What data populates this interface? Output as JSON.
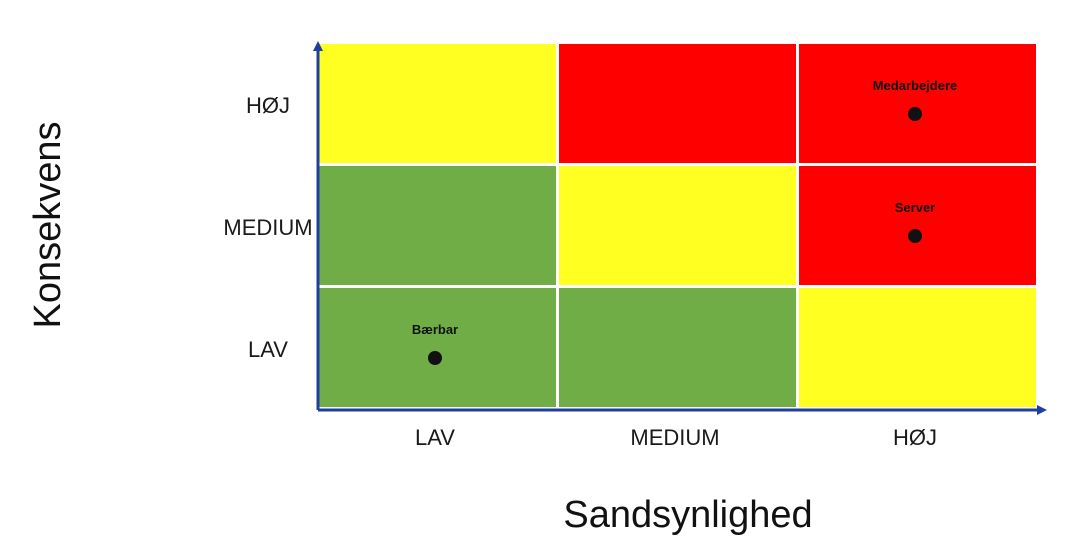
{
  "diagram": {
    "type": "risk-matrix",
    "x_axis": {
      "title": "Sandsynlighed",
      "levels": [
        "LAV",
        "MEDIUM",
        "HØJ"
      ]
    },
    "y_axis": {
      "title": "Konsekvens",
      "levels": [
        "LAV",
        "MEDIUM",
        "HØJ"
      ]
    },
    "colors": {
      "green": "#70ad47",
      "yellow": "#ffff22",
      "red": "#ff0000",
      "axis": "#1f3f9e",
      "cell_border": "#ffffff"
    },
    "cells": [
      {
        "likelihood": "LAV",
        "consequence": "HØJ",
        "color": "yellow"
      },
      {
        "likelihood": "MEDIUM",
        "consequence": "HØJ",
        "color": "red"
      },
      {
        "likelihood": "HØJ",
        "consequence": "HØJ",
        "color": "red"
      },
      {
        "likelihood": "LAV",
        "consequence": "MEDIUM",
        "color": "green"
      },
      {
        "likelihood": "MEDIUM",
        "consequence": "MEDIUM",
        "color": "yellow"
      },
      {
        "likelihood": "HØJ",
        "consequence": "MEDIUM",
        "color": "red"
      },
      {
        "likelihood": "LAV",
        "consequence": "LAV",
        "color": "green"
      },
      {
        "likelihood": "MEDIUM",
        "consequence": "LAV",
        "color": "green"
      },
      {
        "likelihood": "HØJ",
        "consequence": "LAV",
        "color": "yellow"
      }
    ],
    "points": [
      {
        "label": "Medarbejdere",
        "likelihood": "HØJ",
        "consequence": "HØJ"
      },
      {
        "label": "Server",
        "likelihood": "HØJ",
        "consequence": "MEDIUM"
      },
      {
        "label": "Bærbar",
        "likelihood": "LAV",
        "consequence": "LAV"
      }
    ]
  }
}
